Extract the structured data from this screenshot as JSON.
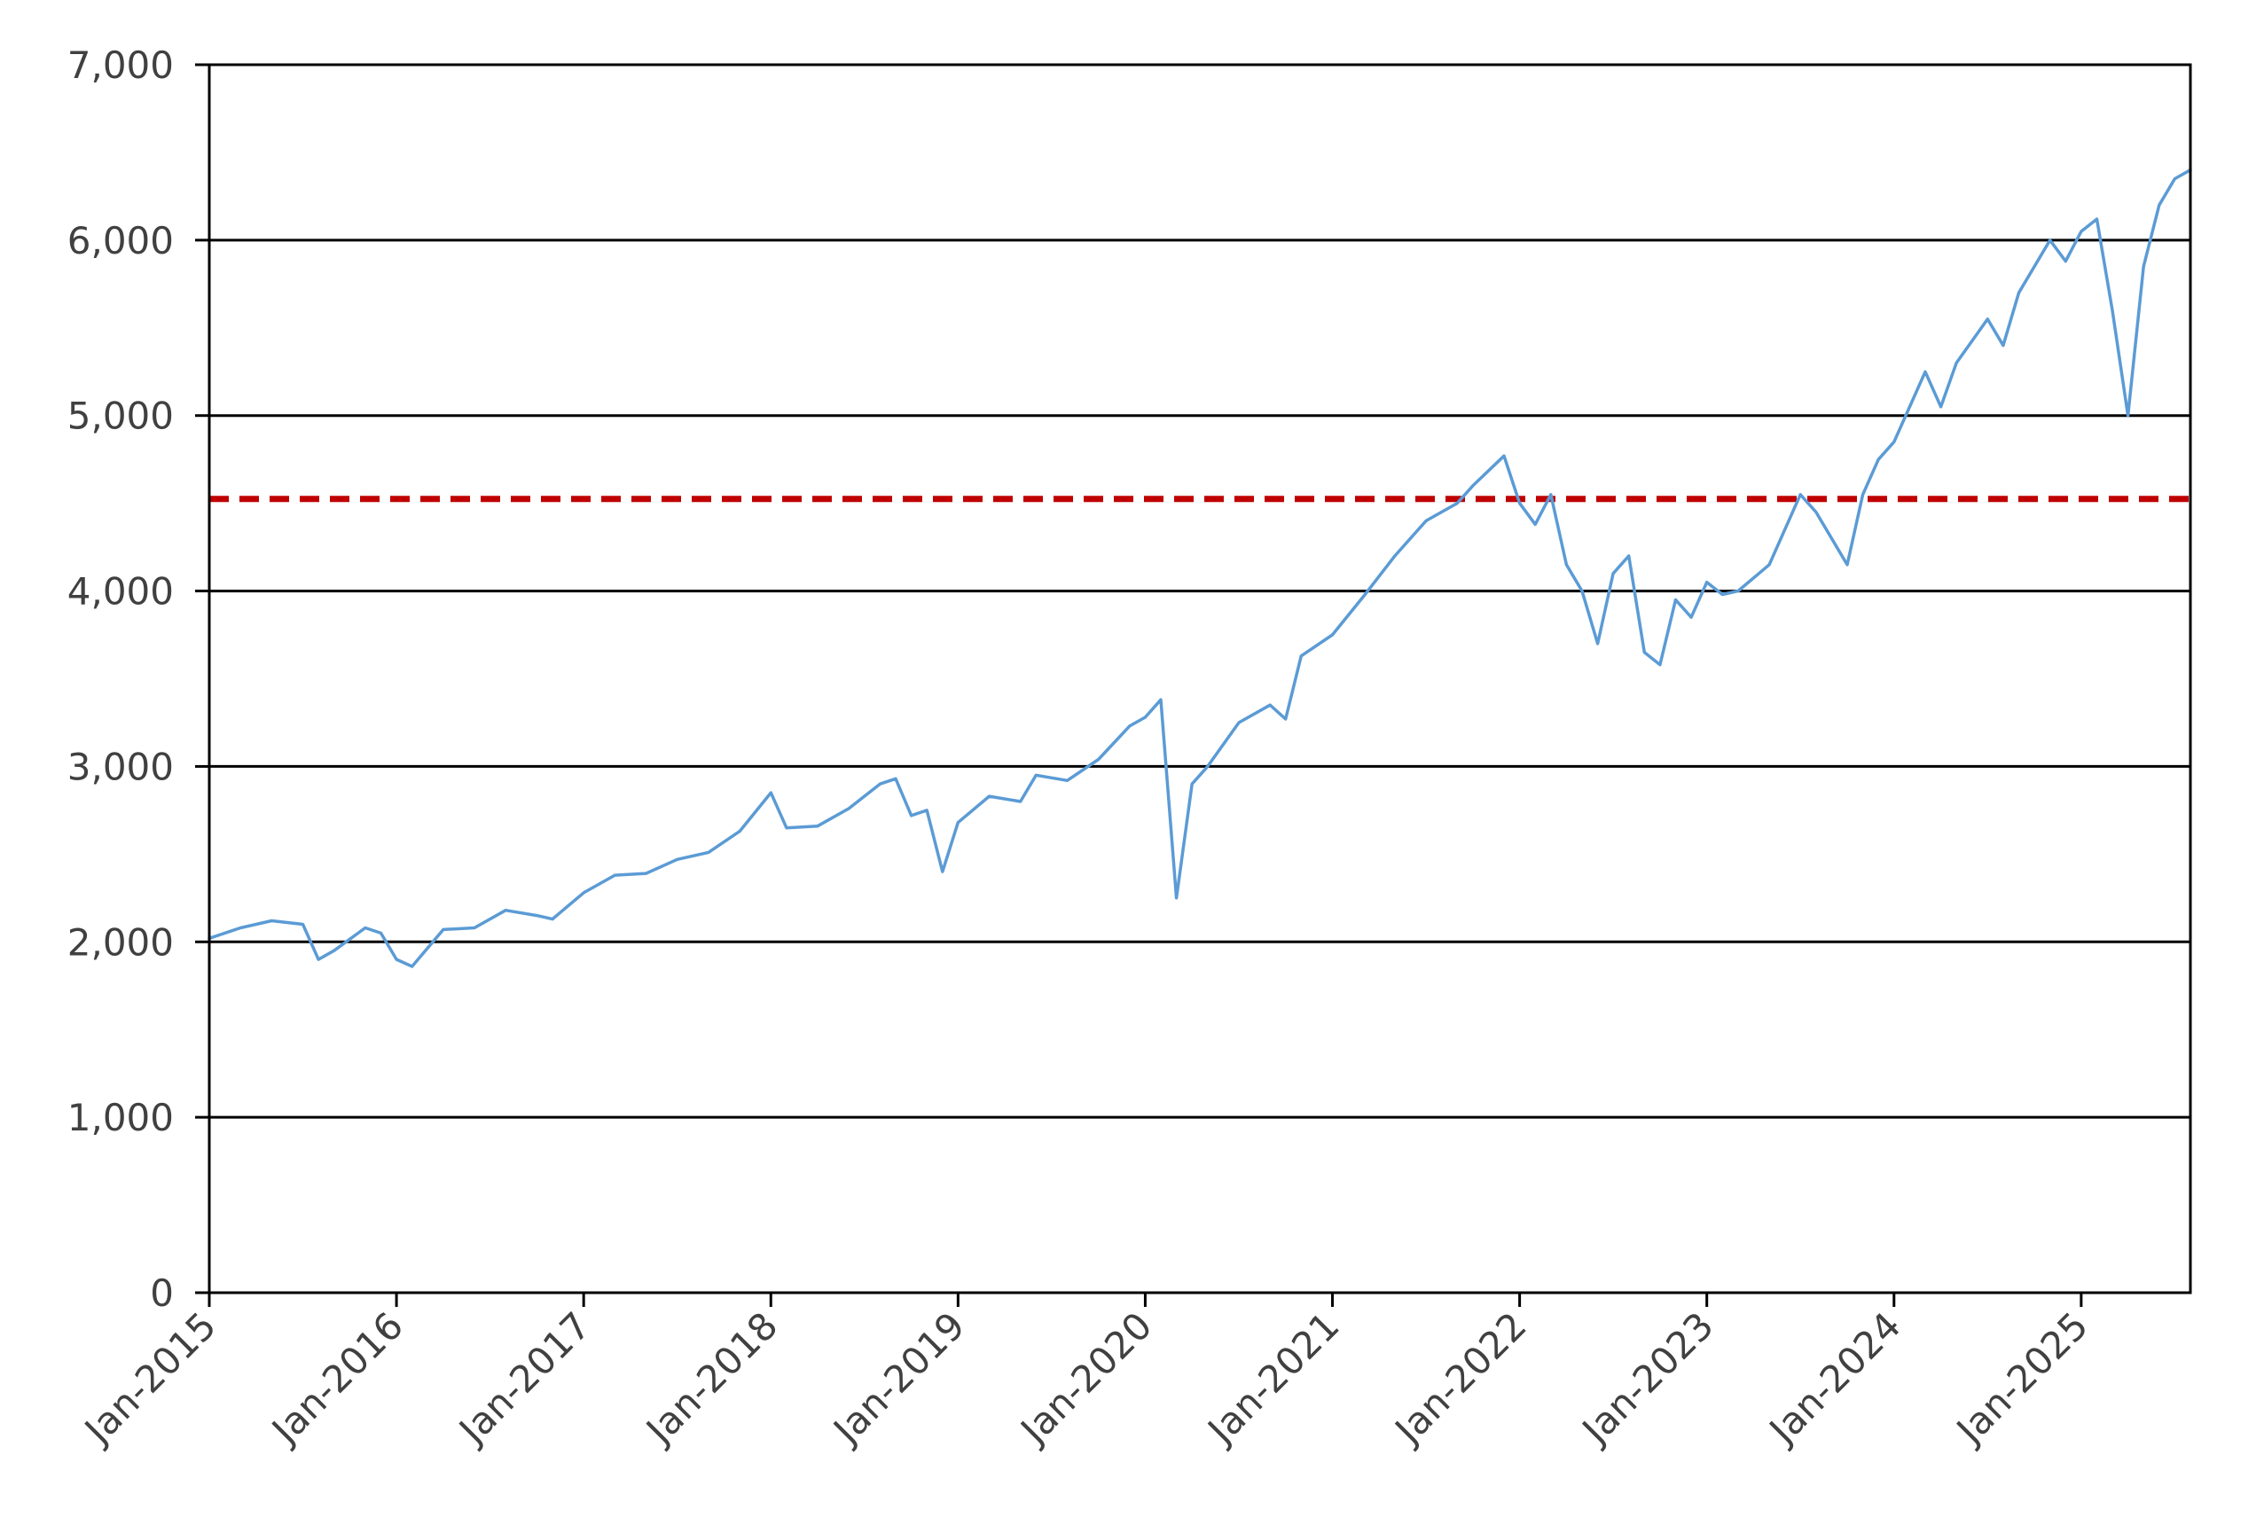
{
  "chart_data": {
    "type": "line",
    "title": "",
    "xlabel": "",
    "ylabel": "",
    "x_tick_labels": [
      "Jan-2015",
      "Jan-2016",
      "Jan-2017",
      "Jan-2018",
      "Jan-2019",
      "Jan-2020",
      "Jan-2021",
      "Jan-2022",
      "Jan-2023",
      "Jan-2024",
      "Jan-2025"
    ],
    "y_tick_labels": [
      "0",
      "1,000",
      "2,000",
      "3,000",
      "4,000",
      "5,000",
      "6,000",
      "7,000"
    ],
    "xlim": [
      "2015-01",
      "2025-08"
    ],
    "ylim": [
      0,
      7000
    ],
    "grid": "horizontal",
    "legend": "none",
    "series": [
      {
        "color": "#5b9bd5",
        "x": [
          "2015-01",
          "2015-03",
          "2015-05",
          "2015-07",
          "2015-08",
          "2015-09",
          "2015-11",
          "2015-12",
          "2016-01",
          "2016-02",
          "2016-04",
          "2016-06",
          "2016-08",
          "2016-10",
          "2016-11",
          "2017-01",
          "2017-03",
          "2017-05",
          "2017-07",
          "2017-09",
          "2017-11",
          "2018-01",
          "2018-02",
          "2018-04",
          "2018-06",
          "2018-08",
          "2018-09",
          "2018-10",
          "2018-11",
          "2018-12",
          "2019-01",
          "2019-03",
          "2019-05",
          "2019-06",
          "2019-08",
          "2019-10",
          "2019-12",
          "2020-01",
          "2020-02",
          "2020-03",
          "2020-04",
          "2020-05",
          "2020-07",
          "2020-09",
          "2020-10",
          "2020-11",
          "2021-01",
          "2021-03",
          "2021-05",
          "2021-07",
          "2021-09",
          "2021-10",
          "2021-12",
          "2022-01",
          "2022-02",
          "2022-03",
          "2022-04",
          "2022-05",
          "2022-06",
          "2022-07",
          "2022-08",
          "2022-09",
          "2022-10",
          "2022-11",
          "2022-12",
          "2023-01",
          "2023-02",
          "2023-03",
          "2023-05",
          "2023-07",
          "2023-08",
          "2023-10",
          "2023-11",
          "2023-12",
          "2024-01",
          "2024-03",
          "2024-04",
          "2024-05",
          "2024-07",
          "2024-08",
          "2024-09",
          "2024-11",
          "2024-12",
          "2025-01",
          "2025-02",
          "2025-03",
          "2025-04",
          "2025-05",
          "2025-06",
          "2025-07",
          "2025-08"
        ],
        "y": [
          2020,
          2080,
          2120,
          2100,
          1900,
          1950,
          2080,
          2050,
          1900,
          1860,
          2070,
          2080,
          2180,
          2150,
          2130,
          2280,
          2380,
          2390,
          2470,
          2510,
          2630,
          2850,
          2650,
          2660,
          2760,
          2900,
          2930,
          2720,
          2750,
          2400,
          2680,
          2830,
          2800,
          2950,
          2920,
          3040,
          3230,
          3280,
          3380,
          2250,
          2900,
          3000,
          3250,
          3350,
          3270,
          3630,
          3750,
          3970,
          4200,
          4400,
          4500,
          4600,
          4770,
          4500,
          4380,
          4550,
          4150,
          4000,
          3700,
          4100,
          4200,
          3650,
          3580,
          3950,
          3850,
          4050,
          3980,
          4000,
          4150,
          4550,
          4450,
          4150,
          4550,
          4750,
          4850,
          5250,
          5050,
          5300,
          5550,
          5400,
          5700,
          6000,
          5880,
          6050,
          6120,
          5600,
          5000,
          5850,
          6200,
          6350,
          6400
        ]
      }
    ],
    "reference_lines": [
      {
        "y": 4525,
        "color": "#c00000",
        "style": "dashed"
      }
    ]
  }
}
